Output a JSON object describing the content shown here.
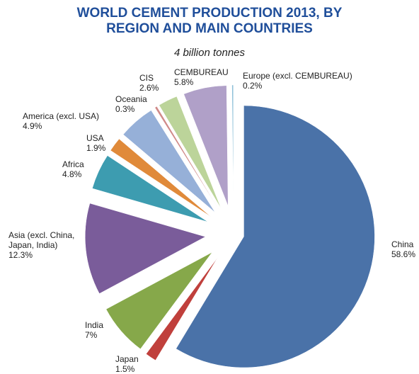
{
  "chart_data": {
    "type": "pie",
    "title": "WORLD CEMENT PRODUCTION 2013, BY REGION AND MAIN COUNTRIES",
    "subtitle": "4 billion tonnes",
    "categories": [
      "China",
      "Japan",
      "India",
      "Asia (excl. China, Japan, India)",
      "Africa",
      "USA",
      "America (excl. USA)",
      "Oceania",
      "CIS",
      "CEMBUREAU",
      "Europe (excl. CEMBUREAU)"
    ],
    "values": [
      58.6,
      1.5,
      7,
      12.3,
      4.8,
      1.9,
      4.9,
      0.3,
      2.6,
      5.8,
      0.2
    ],
    "value_labels": [
      "58.6%",
      "1.5%",
      "7%",
      "12.3%",
      "4.8%",
      "1.9%",
      "4.9%",
      "0.3%",
      "2.6%",
      "5.8%",
      "0.2%"
    ],
    "colors": [
      "#4a72a8",
      "#c0403c",
      "#86a84a",
      "#7a5c9a",
      "#3d9cb0",
      "#e08a3a",
      "#96b0d8",
      "#d08a88",
      "#bcd49a",
      "#b0a0c8",
      "#8ec0d8"
    ]
  }
}
